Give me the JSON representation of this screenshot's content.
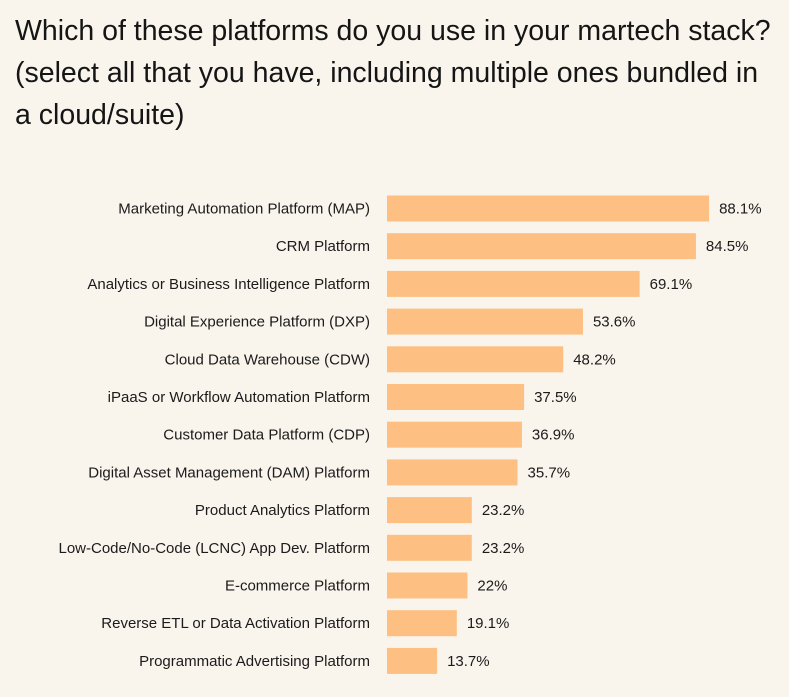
{
  "chart_data": {
    "type": "bar",
    "orientation": "horizontal",
    "title": "Which of these platforms do you use in your martech stack? (select all that you have, including multiple ones bundled in a cloud/suite)",
    "categories": [
      "Marketing Automation Platform (MAP)",
      "CRM Platform",
      "Analytics or Business Intelligence Platform",
      "Digital Experience Platform (DXP)",
      "Cloud Data Warehouse (CDW)",
      "iPaaS or Workflow Automation Platform",
      "Customer Data Platform (CDP)",
      "Digital Asset Management (DAM) Platform",
      "Product Analytics Platform",
      "Low-Code/No-Code (LCNC) App Dev. Platform",
      "E-commerce Platform",
      "Reverse ETL or Data Activation Platform",
      "Programmatic Advertising Platform"
    ],
    "values": [
      88.1,
      84.5,
      69.1,
      53.6,
      48.2,
      37.5,
      36.9,
      35.7,
      23.2,
      23.2,
      22,
      19.1,
      13.7
    ],
    "value_labels": [
      "88.1%",
      "84.5%",
      "69.1%",
      "53.6%",
      "48.2%",
      "37.5%",
      "36.9%",
      "35.7%",
      "23.2%",
      "23.2%",
      "22%",
      "19.1%",
      "13.7%"
    ],
    "unit": "%",
    "xlim": [
      0,
      100
    ],
    "xlabel": "",
    "ylabel": "",
    "grid": false,
    "legend": "none",
    "colors": {
      "bar": "#fdc082",
      "background": "#f9f4ec",
      "text": "#1b1b1b"
    }
  }
}
